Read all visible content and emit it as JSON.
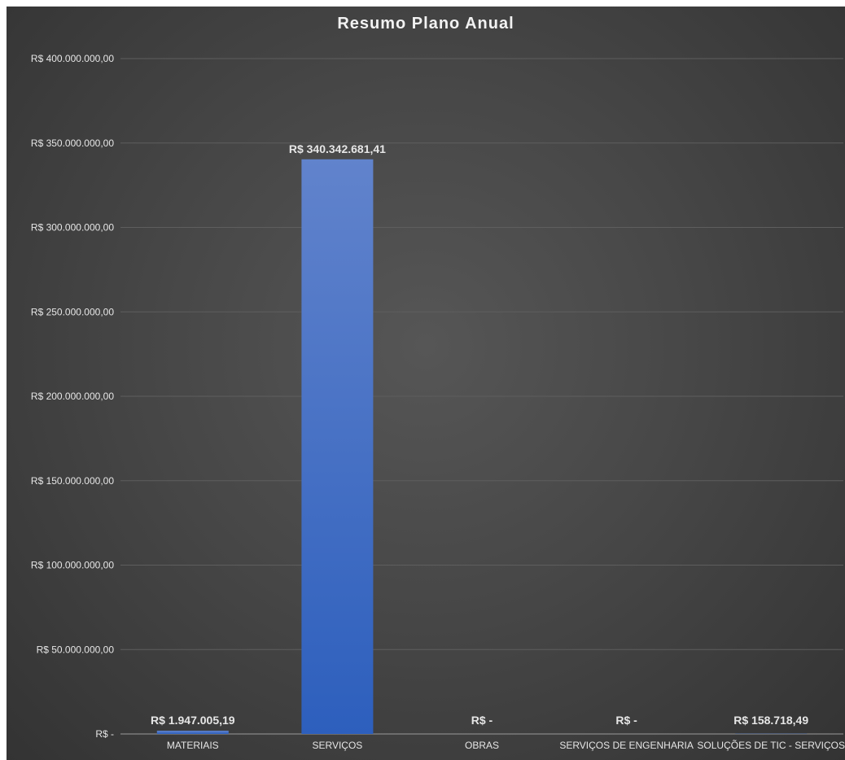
{
  "chart_data": {
    "type": "bar",
    "title": "Resumo Plano Anual",
    "categories": [
      "MATERIAIS",
      "SERVIÇOS",
      "OBRAS",
      "SERVIÇOS DE ENGENHARIA",
      "SOLUÇÕES DE TIC - SERVIÇOS"
    ],
    "values": [
      1947005.19,
      340342681.41,
      0,
      0,
      158718.49
    ],
    "data_labels": [
      "R$ 1.947.005,19",
      "R$ 340.342.681,41",
      "R$ -",
      "R$ -",
      "R$ 158.718,49"
    ],
    "ylim": [
      0,
      400000000
    ],
    "y_ticks": [
      0,
      50000000,
      100000000,
      150000000,
      200000000,
      250000000,
      300000000,
      350000000,
      400000000
    ],
    "y_tick_labels": [
      "R$ -",
      "R$ 50.000.000,00",
      "R$ 100.000.000,00",
      "R$ 150.000.000,00",
      "R$ 200.000.000,00",
      "R$ 250.000.000,00",
      "R$ 300.000.000,00",
      "R$ 350.000.000,00",
      "R$ 400.000.000,00"
    ],
    "xlabel": "",
    "ylabel": "",
    "grid": true,
    "legend": "none",
    "colors": {
      "bar_top": "#6183cc",
      "bar_bottom": "#2d5fbd",
      "gridline": "#5e5e5e",
      "axis": "#9a9a9a",
      "text": "#e6e6e6"
    }
  }
}
